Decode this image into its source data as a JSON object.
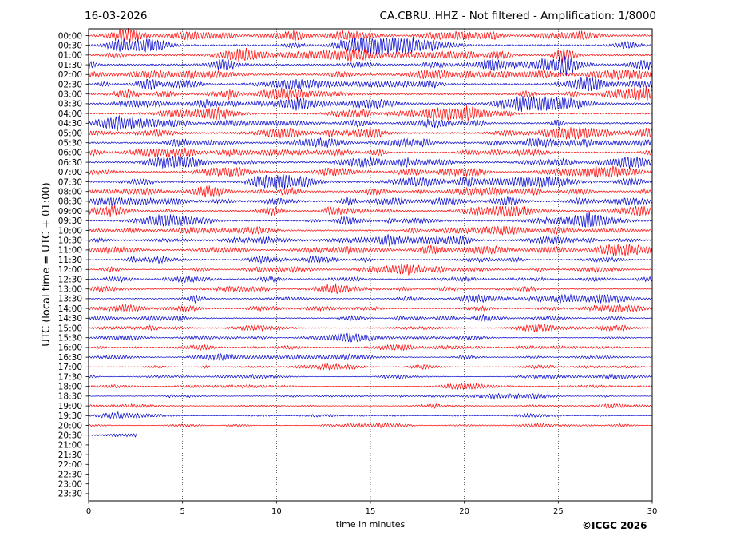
{
  "date_label": "16-03-2026",
  "title": "CA.CBRU..HHZ - Not filtered - Amplification: 1/8000",
  "copyright": "©ICGC 2026",
  "colors": {
    "even_trace": "#ff0000",
    "odd_trace": "#0000cc",
    "axis": "#000000",
    "grid": "#000000"
  },
  "chart_data": {
    "type": "line",
    "title": "CA.CBRU..HHZ - Not filtered - Amplification: 1/8000",
    "xlabel": "time in minutes",
    "ylabel": "UTC (local time = UTC + 01:00)",
    "xlim": [
      0,
      30
    ],
    "x_ticks": [
      0,
      5,
      10,
      15,
      20,
      25,
      30
    ],
    "vertical_grid": [
      5,
      10,
      15,
      20,
      25
    ],
    "grid": "dotted vertical lines at every 5 minutes",
    "row_labels": [
      "00:00",
      "00:30",
      "01:00",
      "01:30",
      "02:00",
      "02:30",
      "03:00",
      "03:30",
      "04:00",
      "04:30",
      "05:00",
      "05:30",
      "06:00",
      "06:30",
      "07:00",
      "07:30",
      "08:00",
      "08:30",
      "09:00",
      "09:30",
      "10:00",
      "10:30",
      "11:00",
      "11:30",
      "12:00",
      "12:30",
      "13:00",
      "13:30",
      "14:00",
      "14:30",
      "15:00",
      "15:30",
      "16:00",
      "16:30",
      "17:00",
      "17:30",
      "18:00",
      "18:30",
      "19:00",
      "19:30",
      "20:00",
      "20:30",
      "21:00",
      "21:30",
      "22:00",
      "22:30",
      "23:00",
      "23:30"
    ],
    "rows_recorded": 42,
    "last_row_end_minutes": 2.6,
    "trace_colors": "alternating red and blue rows",
    "amplitude_levels": [
      0.9,
      0.9,
      0.9,
      0.9,
      0.9,
      0.9,
      0.9,
      1.0,
      0.8,
      0.8,
      0.8,
      0.8,
      0.8,
      0.8,
      0.8,
      0.9,
      0.8,
      0.8,
      0.7,
      0.7,
      0.7,
      0.7,
      0.7,
      0.5,
      0.5,
      0.5,
      0.5,
      0.5,
      0.5,
      0.5,
      0.4,
      0.4,
      0.4,
      0.4,
      0.3,
      0.3,
      0.3,
      0.3,
      0.3,
      0.3,
      0.3,
      0.3
    ]
  }
}
